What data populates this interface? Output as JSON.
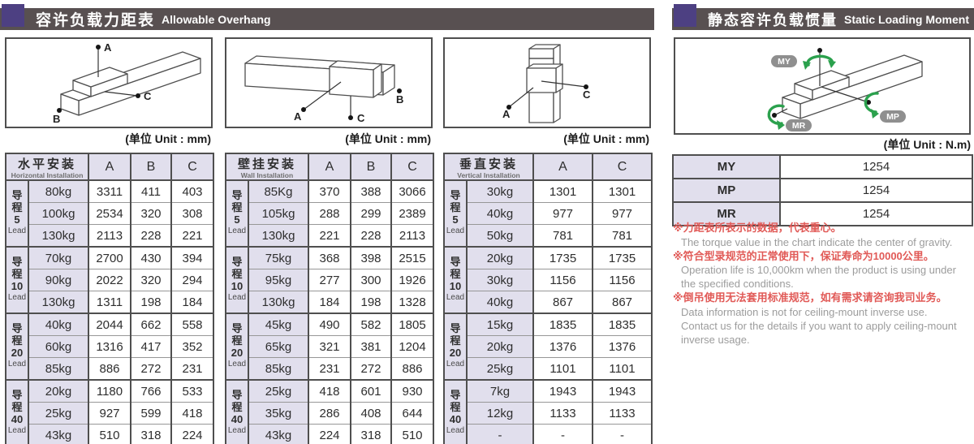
{
  "colors": {
    "accent_purple": "#4d4082",
    "header_bar": "#585051",
    "cell_lavender": "#e1dfed",
    "note_red": "#e15a57",
    "note_gray": "#9c9c9c",
    "arrow_green": "#2ba14d"
  },
  "left_section": {
    "title_zh": "容许负载力距表",
    "title_en": "Allowable Overhang",
    "unit_label": "(单位 Unit : mm)",
    "tables": [
      {
        "name_zh": "水平安装",
        "name_en": "Horizontal Installation",
        "diagram_labels": {
          "a": "A",
          "b": "B",
          "c": "C"
        },
        "columns": [
          "A",
          "B",
          "C"
        ],
        "groups": [
          {
            "lead_zh": "导程",
            "lead_num": "5",
            "lead_en": "Lead",
            "rows": [
              {
                "load": "80kg",
                "values": [
                  "3311",
                  "411",
                  "403"
                ]
              },
              {
                "load": "100kg",
                "values": [
                  "2534",
                  "320",
                  "308"
                ]
              },
              {
                "load": "130kg",
                "values": [
                  "2113",
                  "228",
                  "221"
                ]
              }
            ]
          },
          {
            "lead_zh": "导程",
            "lead_num": "10",
            "lead_en": "Lead",
            "rows": [
              {
                "load": "70kg",
                "values": [
                  "2700",
                  "430",
                  "394"
                ]
              },
              {
                "load": "90kg",
                "values": [
                  "2022",
                  "320",
                  "294"
                ]
              },
              {
                "load": "130kg",
                "values": [
                  "1311",
                  "198",
                  "184"
                ]
              }
            ]
          },
          {
            "lead_zh": "导程",
            "lead_num": "20",
            "lead_en": "Lead",
            "rows": [
              {
                "load": "40kg",
                "values": [
                  "2044",
                  "662",
                  "558"
                ]
              },
              {
                "load": "60kg",
                "values": [
                  "1316",
                  "417",
                  "352"
                ]
              },
              {
                "load": "85kg",
                "values": [
                  "886",
                  "272",
                  "231"
                ]
              }
            ]
          },
          {
            "lead_zh": "导程",
            "lead_num": "40",
            "lead_en": "Lead",
            "rows": [
              {
                "load": "20kg",
                "values": [
                  "1180",
                  "766",
                  "533"
                ]
              },
              {
                "load": "25kg",
                "values": [
                  "927",
                  "599",
                  "418"
                ]
              },
              {
                "load": "43kg",
                "values": [
                  "510",
                  "318",
                  "224"
                ]
              }
            ]
          }
        ]
      },
      {
        "name_zh": "壁挂安装",
        "name_en": "Wall Installation",
        "diagram_labels": {
          "a": "A",
          "b": "B",
          "c": "C"
        },
        "columns": [
          "A",
          "B",
          "C"
        ],
        "groups": [
          {
            "lead_zh": "导程",
            "lead_num": "5",
            "lead_en": "Lead",
            "rows": [
              {
                "load": "85Kg",
                "values": [
                  "370",
                  "388",
                  "3066"
                ]
              },
              {
                "load": "105kg",
                "values": [
                  "288",
                  "299",
                  "2389"
                ]
              },
              {
                "load": "130kg",
                "values": [
                  "221",
                  "228",
                  "2113"
                ]
              }
            ]
          },
          {
            "lead_zh": "导程",
            "lead_num": "10",
            "lead_en": "Lead",
            "rows": [
              {
                "load": "75kg",
                "values": [
                  "368",
                  "398",
                  "2515"
                ]
              },
              {
                "load": "95kg",
                "values": [
                  "277",
                  "300",
                  "1926"
                ]
              },
              {
                "load": "130kg",
                "values": [
                  "184",
                  "198",
                  "1328"
                ]
              }
            ]
          },
          {
            "lead_zh": "导程",
            "lead_num": "20",
            "lead_en": "Lead",
            "rows": [
              {
                "load": "45kg",
                "values": [
                  "490",
                  "582",
                  "1805"
                ]
              },
              {
                "load": "65kg",
                "values": [
                  "321",
                  "381",
                  "1204"
                ]
              },
              {
                "load": "85kg",
                "values": [
                  "231",
                  "272",
                  "886"
                ]
              }
            ]
          },
          {
            "lead_zh": "导程",
            "lead_num": "40",
            "lead_en": "Lead",
            "rows": [
              {
                "load": "25kg",
                "values": [
                  "418",
                  "601",
                  "930"
                ]
              },
              {
                "load": "35kg",
                "values": [
                  "286",
                  "408",
                  "644"
                ]
              },
              {
                "load": "43kg",
                "values": [
                  "224",
                  "318",
                  "510"
                ]
              }
            ]
          }
        ]
      },
      {
        "name_zh": "垂直安装",
        "name_en": "Vertical Installation",
        "diagram_labels": {
          "a": "A",
          "c": "C"
        },
        "columns": [
          "A",
          "C"
        ],
        "groups": [
          {
            "lead_zh": "导程",
            "lead_num": "5",
            "lead_en": "Lead",
            "rows": [
              {
                "load": "30kg",
                "values": [
                  "1301",
                  "1301"
                ]
              },
              {
                "load": "40kg",
                "values": [
                  "977",
                  "977"
                ]
              },
              {
                "load": "50kg",
                "values": [
                  "781",
                  "781"
                ]
              }
            ]
          },
          {
            "lead_zh": "导程",
            "lead_num": "10",
            "lead_en": "Lead",
            "rows": [
              {
                "load": "20kg",
                "values": [
                  "1735",
                  "1735"
                ]
              },
              {
                "load": "30kg",
                "values": [
                  "1156",
                  "1156"
                ]
              },
              {
                "load": "40kg",
                "values": [
                  "867",
                  "867"
                ]
              }
            ]
          },
          {
            "lead_zh": "导程",
            "lead_num": "20",
            "lead_en": "Lead",
            "rows": [
              {
                "load": "15kg",
                "values": [
                  "1835",
                  "1835"
                ]
              },
              {
                "load": "20kg",
                "values": [
                  "1376",
                  "1376"
                ]
              },
              {
                "load": "25kg",
                "values": [
                  "1101",
                  "1101"
                ]
              }
            ]
          },
          {
            "lead_zh": "导程",
            "lead_num": "40",
            "lead_en": "Lead",
            "rows": [
              {
                "load": "7kg",
                "values": [
                  "1943",
                  "1943"
                ]
              },
              {
                "load": "12kg",
                "values": [
                  "1133",
                  "1133"
                ]
              },
              {
                "load": "-",
                "values": [
                  "-",
                  "-"
                ]
              }
            ]
          }
        ]
      }
    ]
  },
  "right_section": {
    "title_zh": "静态容许负载惯量",
    "title_en": "Static Loading Moment",
    "unit_label": "(单位 Unit : N.m)",
    "moment_badges": {
      "my": "MY",
      "mp": "MP",
      "mr": "MR"
    },
    "moment_table": {
      "rows": [
        {
          "label": "MY",
          "value": "1254"
        },
        {
          "label": "MP",
          "value": "1254"
        },
        {
          "label": "MR",
          "value": "1254"
        }
      ]
    },
    "notes": [
      {
        "zh": "※力距表所表示的数据，代表重心。",
        "en": [
          "The torque value in the chart indicate the center of gravity."
        ]
      },
      {
        "zh": "※符合型录规范的正常使用下，保证寿命为10000公里。",
        "en": [
          "Operation life is 10,000km when the product is using under the specified conditions."
        ]
      },
      {
        "zh": "※倒吊使用无法套用标准规范，如有需求请咨询我司业务。",
        "en": [
          "Data information is not for ceiling-mount inverse use.",
          "Contact us for the details if you want to apply ceiling-mount inverse usage."
        ]
      }
    ]
  }
}
